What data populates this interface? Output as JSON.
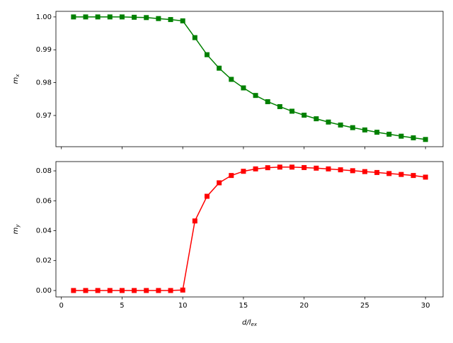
{
  "chart_data": [
    {
      "type": "line",
      "ylabel": [
        "m",
        "x"
      ],
      "color": "#008000",
      "marker": "square",
      "x": [
        1,
        2,
        3,
        4,
        5,
        6,
        7,
        8,
        9,
        10,
        11,
        12,
        13,
        14,
        15,
        16,
        17,
        18,
        19,
        20,
        21,
        22,
        23,
        24,
        25,
        26,
        27,
        28,
        29,
        30
      ],
      "values": [
        1.0,
        1.0,
        1.0,
        1.0,
        1.0,
        0.9999,
        0.9998,
        0.9995,
        0.9992,
        0.9988,
        0.9937,
        0.9885,
        0.9844,
        0.981,
        0.9784,
        0.9761,
        0.9742,
        0.9727,
        0.9713,
        0.9701,
        0.969,
        0.968,
        0.9671,
        0.9663,
        0.9656,
        0.9649,
        0.9643,
        0.9637,
        0.9632,
        0.9627
      ],
      "xlim": [
        -0.45,
        31.45
      ],
      "xticks": [
        0,
        5,
        10,
        15,
        20,
        25,
        30
      ],
      "show_xtick_labels": false,
      "ylim": [
        0.9605,
        1.0017
      ],
      "yticks": [
        {
          "value": 0.97,
          "label": "0.97"
        },
        {
          "value": 0.98,
          "label": "0.98"
        },
        {
          "value": 0.99,
          "label": "0.99"
        },
        {
          "value": 1.0,
          "label": "1.00"
        }
      ]
    },
    {
      "type": "line",
      "ylabel": [
        "m",
        "y"
      ],
      "xlabel": [
        "d/l",
        "ex"
      ],
      "color": "#ff0000",
      "marker": "square",
      "x": [
        1,
        2,
        3,
        4,
        5,
        6,
        7,
        8,
        9,
        10,
        11,
        12,
        13,
        14,
        15,
        16,
        17,
        18,
        19,
        20,
        21,
        22,
        23,
        24,
        25,
        26,
        27,
        28,
        29,
        30
      ],
      "values": [
        0,
        0,
        0,
        0,
        0,
        0,
        0,
        0,
        0,
        0.0003,
        0.0465,
        0.063,
        0.072,
        0.0769,
        0.0797,
        0.0813,
        0.0821,
        0.0825,
        0.0825,
        0.0822,
        0.0818,
        0.0813,
        0.0807,
        0.0801,
        0.0795,
        0.0789,
        0.0782,
        0.0776,
        0.0769,
        0.0758
      ],
      "xlim": [
        -0.45,
        31.45
      ],
      "xticks": [
        0,
        5,
        10,
        15,
        20,
        25,
        30
      ],
      "show_xtick_labels": true,
      "ylim": [
        -0.0043,
        0.0862
      ],
      "yticks": [
        {
          "value": 0,
          "label": "0.00"
        },
        {
          "value": 0.02,
          "label": "0.02"
        },
        {
          "value": 0.04,
          "label": "0.04"
        },
        {
          "value": 0.06,
          "label": "0.06"
        },
        {
          "value": 0.08,
          "label": "0.08"
        }
      ]
    }
  ]
}
